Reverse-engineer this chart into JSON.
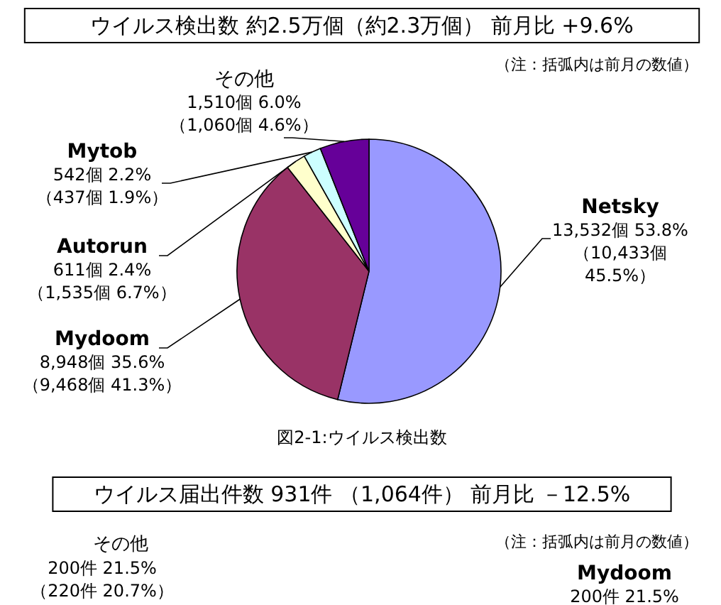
{
  "chart_data": [
    {
      "type": "pie",
      "title": "ウイルス検出数  約2.5万個（約2.3万個）   前月比  +9.6%",
      "categories": [
        "Netsky",
        "Mydoom",
        "Autorun",
        "Mytob",
        "その他"
      ],
      "values": [
        13532,
        8948,
        611,
        542,
        1510
      ],
      "colors": [
        "#9999ff",
        "#993366",
        "#ffffcc",
        "#ccffff",
        "#660099"
      ],
      "value_labels": [
        "13,532個 53.8%\n（10,433個\n45.5%）",
        "8,948個 35.6%\n（9,468個 41.3%）",
        "611個 2.4%\n（1,535個 6.7%）",
        "542個 2.2%\n（437個 1.9%）",
        "1,510個 6.0%\n（1,060個 4.6%）"
      ],
      "annotations": [
        "（注：括弧内は前月の数値）",
        "図2-1:ウイルス検出数"
      ]
    },
    {
      "type": "other",
      "title": "ウイルス届出件数 931件 （1,064件） 前月比 －12.5%",
      "annotations": [
        "（注：括弧内は前月の数値）",
        "その他",
        "200件 21.5%",
        "（220件 20.7%）",
        "Mydoom",
        "200件 21.5%"
      ]
    }
  ]
}
